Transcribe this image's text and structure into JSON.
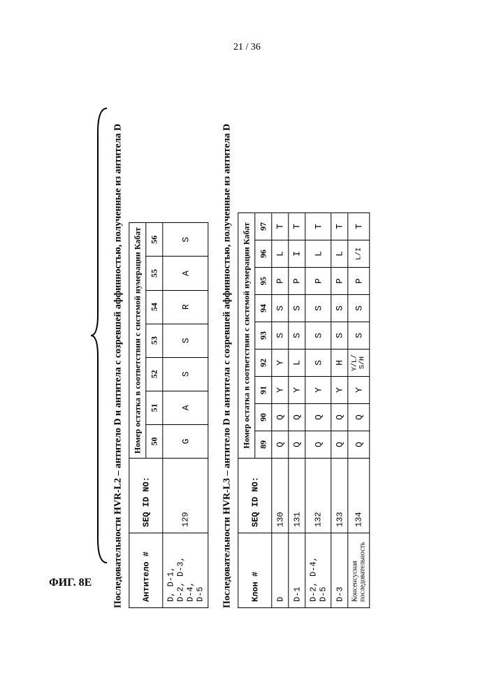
{
  "page_number": "21 / 36",
  "figure_label": "ФИГ. 8E",
  "table1": {
    "title": "Последовательности HVR-L2 – антитело D и антитела с созревшей аффинностью, полученные из антитела D",
    "col1_header": "Антитело #",
    "col2_header": "SEQ ID NO:",
    "span_header": "Номер остатка в соответствии с системой нумерации Кабат",
    "positions": [
      "50",
      "51",
      "52",
      "53",
      "54",
      "55",
      "56"
    ],
    "rows": [
      {
        "ab": "D, D-1, D-2, D-3, D-4, D-5",
        "seq": "129",
        "res": [
          "G",
          "A",
          "S",
          "S",
          "R",
          "A",
          "S"
        ]
      }
    ]
  },
  "table2": {
    "title": "Последовательности HVR-L3 – антитело D и антитела с созревшей аффинностью, полученные из антитела D",
    "col1_header": "Клон #",
    "col2_header": "SEQ ID NO:",
    "span_header": "Номер остатка в соответствии с системой нумерации Кабат",
    "positions": [
      "89",
      "90",
      "91",
      "92",
      "93",
      "94",
      "95",
      "96",
      "97"
    ],
    "rows": [
      {
        "ab": "D",
        "seq": "130",
        "res": [
          "Q",
          "Q",
          "Y",
          "Y",
          "S",
          "S",
          "P",
          "L",
          "T"
        ]
      },
      {
        "ab": "D-1",
        "seq": "131",
        "res": [
          "Q",
          "Q",
          "Y",
          "L",
          "S",
          "S",
          "P",
          "I",
          "T"
        ]
      },
      {
        "ab": "D-2, D-4, D-5",
        "seq": "132",
        "res": [
          "Q",
          "Q",
          "Y",
          "S",
          "S",
          "S",
          "P",
          "L",
          "T"
        ]
      },
      {
        "ab": "D-3",
        "seq": "133",
        "res": [
          "Q",
          "Q",
          "Y",
          "H",
          "S",
          "S",
          "P",
          "L",
          "T"
        ]
      },
      {
        "ab": "Консенсусная последовательность",
        "seq": "134",
        "res": [
          "Q",
          "Q",
          "Y",
          "Y/L/ S/H",
          "S",
          "S",
          "P",
          "L/I",
          "T"
        ]
      }
    ]
  }
}
